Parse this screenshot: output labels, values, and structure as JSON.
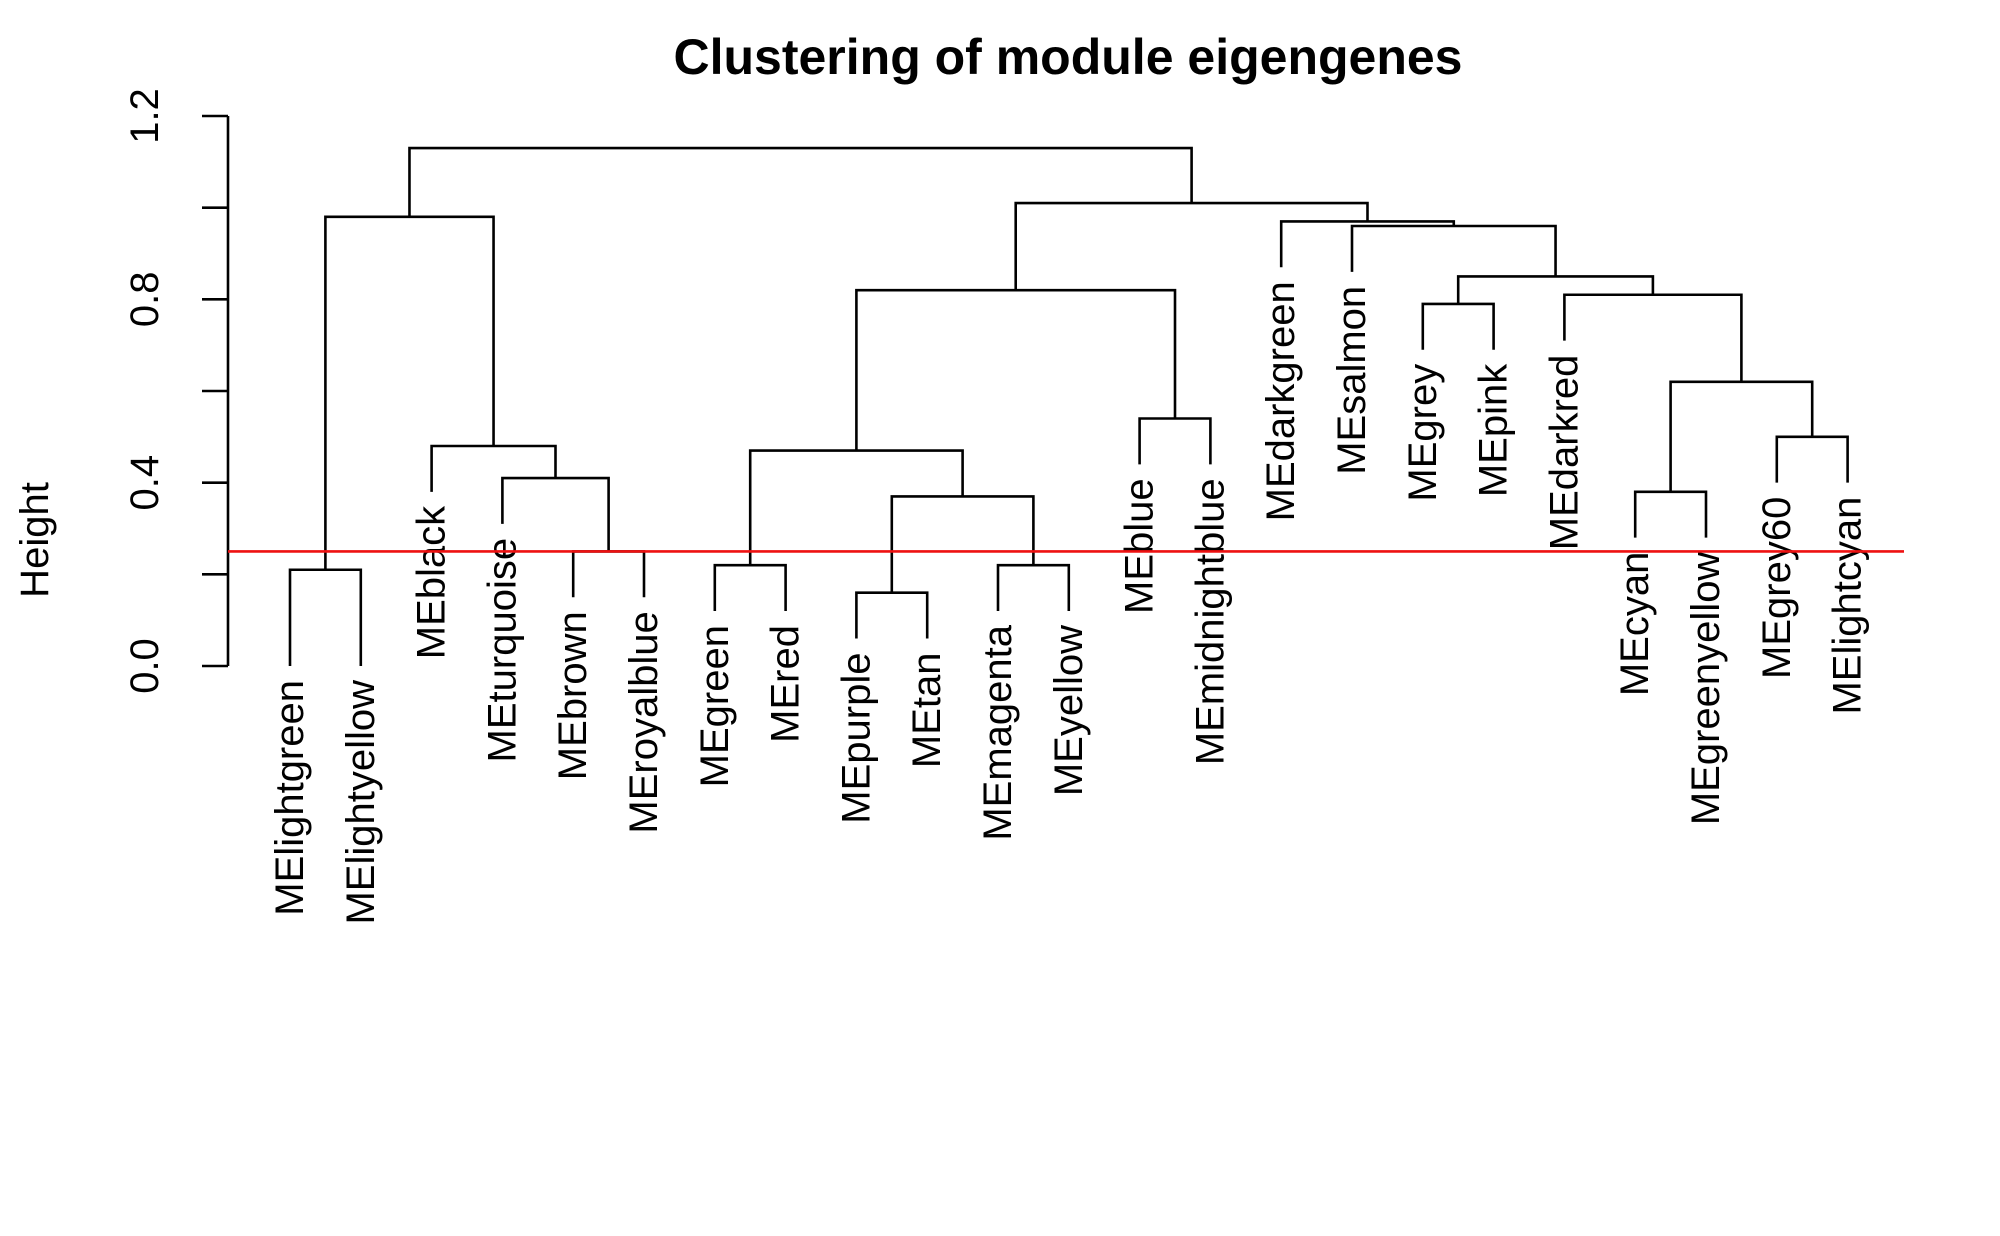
{
  "chart_data": {
    "type": "dendrogram",
    "title": "Clustering of module eigengenes",
    "ylabel": "Height",
    "xlabel": "",
    "ylim": [
      0,
      1.2
    ],
    "yticks": [
      0.0,
      0.4,
      0.8,
      1.2
    ],
    "ytick_labels": [
      "0.0",
      "0.4",
      "0.8",
      "1.2"
    ],
    "cut_height": 0.25,
    "cut_color": "#ee1111",
    "leaves": [
      "MElightgreen",
      "MElightyellow",
      "MEblack",
      "MEturquoise",
      "MEbrown",
      "MEroyalblue",
      "MEgreen",
      "MEred",
      "MEpurple",
      "MEtan",
      "MEmagenta",
      "MEyellow",
      "MEblue",
      "MEmidnightblue",
      "MEdarkgreen",
      "MEsalmon",
      "MEgrey",
      "MEpink",
      "MEdarkred",
      "MEcyan",
      "MEgreenyellow",
      "MEgrey60",
      "MElightcyan"
    ],
    "leaf_heights": [
      0.0,
      0.0,
      0.38,
      0.31,
      0.15,
      0.15,
      0.12,
      0.12,
      0.06,
      0.06,
      0.12,
      0.12,
      0.44,
      0.44,
      0.87,
      0.86,
      0.69,
      0.69,
      0.71,
      0.28,
      0.28,
      0.4,
      0.4
    ],
    "merges": [
      {
        "left": "L0",
        "right": "L1",
        "height": 0.21
      },
      {
        "left": "L4",
        "right": "L5",
        "height": 0.25
      },
      {
        "left": "L3",
        "right": "C1",
        "height": 0.41
      },
      {
        "left": "L2",
        "right": "C2",
        "height": 0.48
      },
      {
        "left": "C0",
        "right": "C3",
        "height": 0.98
      },
      {
        "left": "L6",
        "right": "L7",
        "height": 0.22
      },
      {
        "left": "L8",
        "right": "L9",
        "height": 0.16
      },
      {
        "left": "L10",
        "right": "L11",
        "height": 0.22
      },
      {
        "left": "C6",
        "right": "C7",
        "height": 0.37
      },
      {
        "left": "C5",
        "right": "C8",
        "height": 0.47
      },
      {
        "left": "L12",
        "right": "L13",
        "height": 0.54
      },
      {
        "left": "C9",
        "right": "C10",
        "height": 0.82
      },
      {
        "left": "L16",
        "right": "L17",
        "height": 0.79
      },
      {
        "left": "L19",
        "right": "L20",
        "height": 0.38
      },
      {
        "left": "L21",
        "right": "L22",
        "height": 0.5
      },
      {
        "left": "C13",
        "right": "C14",
        "height": 0.62
      },
      {
        "left": "L18",
        "right": "C15",
        "height": 0.81
      },
      {
        "left": "C12",
        "right": "C16",
        "height": 0.85
      },
      {
        "left": "L15",
        "right": "C17",
        "height": 0.96
      },
      {
        "left": "L14",
        "right": "C18",
        "height": 0.97
      },
      {
        "left": "C11",
        "right": "C19",
        "height": 1.01
      },
      {
        "left": "C4",
        "right": "C20",
        "height": 1.13
      }
    ]
  }
}
